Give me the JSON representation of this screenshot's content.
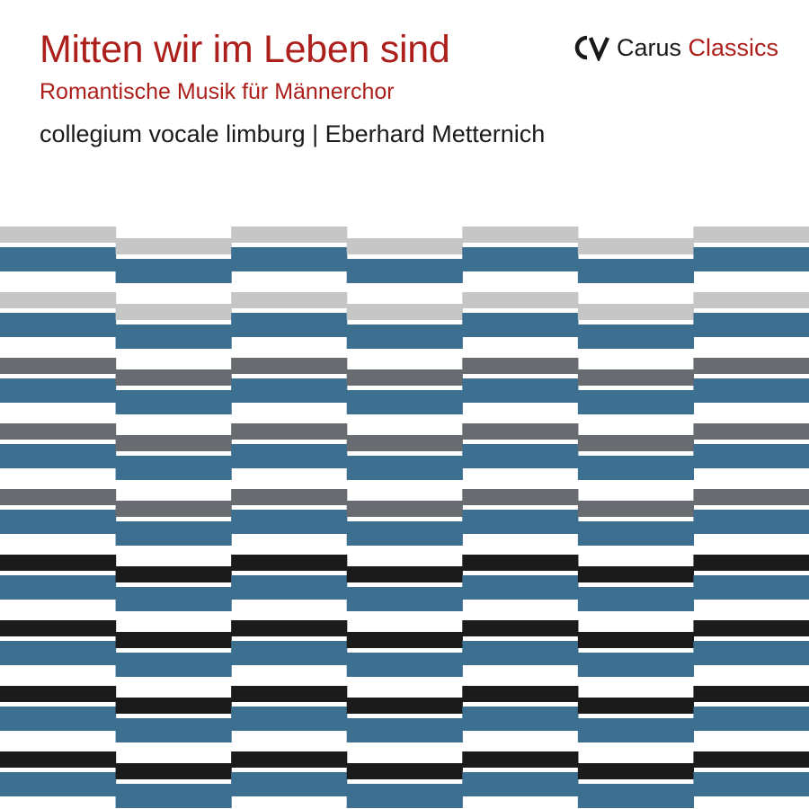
{
  "cover": {
    "title": "Mitten wir im Leben sind",
    "subtitle": "Romantische Musik für Männerchor",
    "performers": "collegium vocale limburg | Eberhard Metternich"
  },
  "logo": {
    "mark_icon": "carus-cv-logo-icon",
    "brand": "Carus",
    "line": "Classics"
  },
  "colors": {
    "title_red": "#ad1f1b",
    "text_black": "#1a1a1a",
    "blue": "#3d6f90",
    "light_gray": "#c6c6c6",
    "mid_gray": "#686c71",
    "black": "#1b1b1b",
    "background": "#ffffff"
  },
  "pattern": {
    "columns": 7,
    "rows": [
      "light_gray",
      "light_gray",
      "mid_gray",
      "mid_gray",
      "mid_gray",
      "black",
      "black",
      "black",
      "black"
    ]
  }
}
